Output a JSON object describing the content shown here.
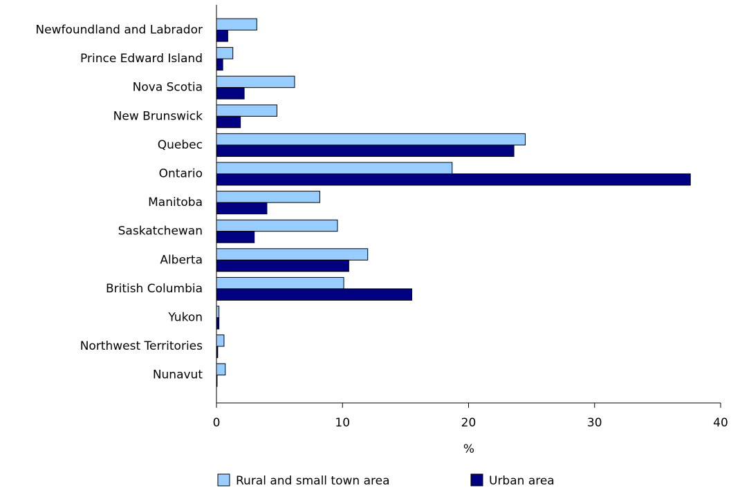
{
  "chart_data": {
    "type": "bar",
    "orientation": "horizontal",
    "categories": [
      "Newfoundland and Labrador",
      "Prince Edward Island",
      "Nova Scotia",
      "New Brunswick",
      "Quebec",
      "Ontario",
      "Manitoba",
      "Saskatchewan",
      "Alberta",
      "British Columbia",
      "Yukon",
      "Northwest Territories",
      "Nunavut"
    ],
    "series": [
      {
        "name": "Rural and small town area",
        "color": "#99ccff",
        "values": [
          3.2,
          1.3,
          6.2,
          4.8,
          24.5,
          18.7,
          8.2,
          9.6,
          12.0,
          10.1,
          0.2,
          0.6,
          0.7
        ]
      },
      {
        "name": "Urban area",
        "color": "#000080",
        "values": [
          0.9,
          0.5,
          2.2,
          1.9,
          23.6,
          37.6,
          4.0,
          3.0,
          10.5,
          15.5,
          0.2,
          0.1,
          0.05
        ]
      }
    ],
    "xlabel": "%",
    "ylabel": "",
    "xlim": [
      0,
      40
    ],
    "xticks": [
      0,
      10,
      20,
      30,
      40
    ],
    "grid": false,
    "legend_position": "bottom"
  }
}
